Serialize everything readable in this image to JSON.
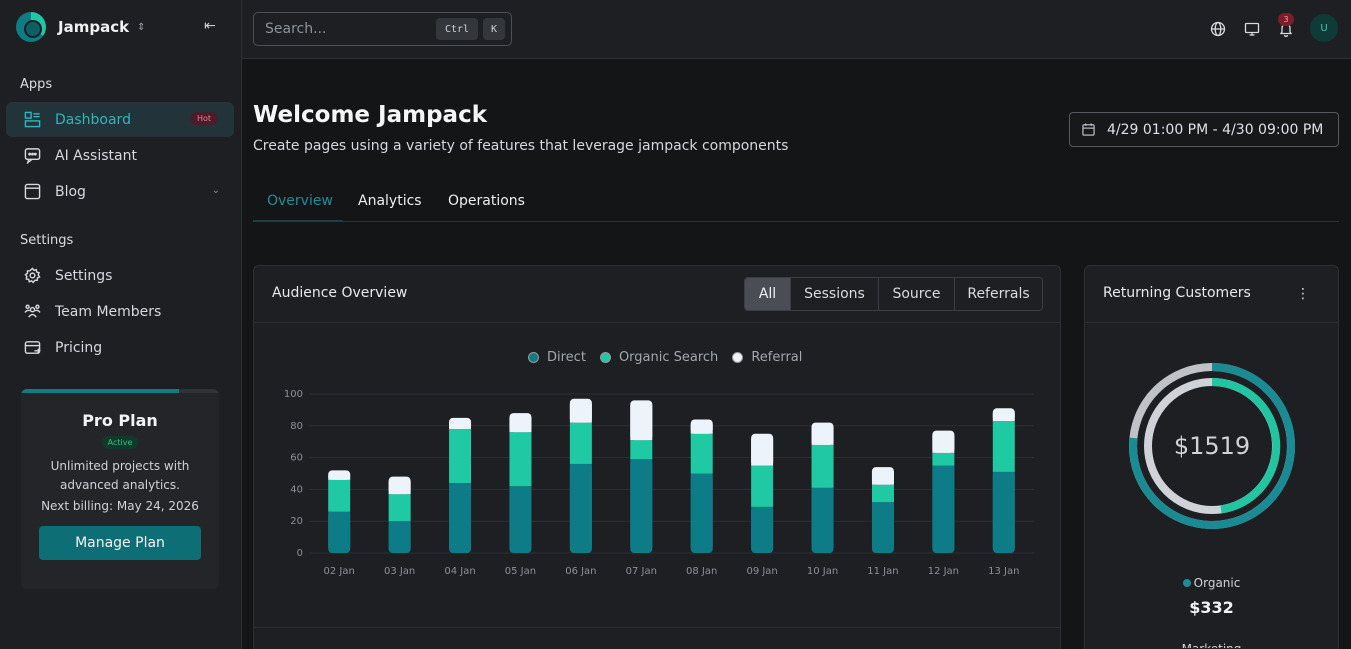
{
  "brand": {
    "name": "Jampack"
  },
  "sidebar": {
    "apps_label": "Apps",
    "settings_label": "Settings",
    "items": [
      {
        "label": "Dashboard",
        "badge": "Hot",
        "icon": "dashboard-icon"
      },
      {
        "label": "AI Assistant",
        "icon": "chat-icon"
      },
      {
        "label": "Blog",
        "icon": "browser-window-icon"
      },
      {
        "label": "Settings",
        "icon": "gear-icon"
      },
      {
        "label": "Team Members",
        "icon": "users-icon"
      },
      {
        "label": "Pricing",
        "icon": "billing-icon"
      }
    ]
  },
  "plan": {
    "title": "Pro Plan",
    "badge": "Active",
    "description": "Unlimited projects with advanced analytics.",
    "billing": "Next billing: May 24, 2026",
    "button": "Manage Plan"
  },
  "topbar": {
    "search_placeholder": "Search...",
    "kbd_ctrl": "Ctrl",
    "kbd_k": "K",
    "notification_count": "3",
    "avatar_initial": "U"
  },
  "page": {
    "title": "Welcome Jampack",
    "subtitle": "Create pages using a variety of features that leverage jampack components",
    "date_range": "4/29 01:00 PM - 4/30 09:00 PM",
    "tabs": [
      "Overview",
      "Analytics",
      "Operations"
    ]
  },
  "audience": {
    "title": "Audience Overview",
    "filters": [
      "All",
      "Sessions",
      "Source",
      "Referrals"
    ],
    "active_filter": "All"
  },
  "chart_data": {
    "type": "bar",
    "stacked": true,
    "categories": [
      "02 Jan",
      "03 Jan",
      "04 Jan",
      "05 Jan",
      "06 Jan",
      "07 Jan",
      "08 Jan",
      "09 Jan",
      "10 Jan",
      "11 Jan",
      "12 Jan",
      "13 Jan"
    ],
    "series": [
      {
        "name": "Direct",
        "color": "#0e7c86",
        "values": [
          26,
          20,
          44,
          42,
          56,
          59,
          50,
          29,
          41,
          32,
          55,
          51
        ]
      },
      {
        "name": "Organic Search",
        "color": "#1fc9a3",
        "values": [
          20,
          17,
          34,
          34,
          26,
          12,
          25,
          26,
          27,
          11,
          8,
          32
        ]
      },
      {
        "name": "Referral",
        "color": "#edf3fa",
        "values": [
          6,
          11,
          7,
          12,
          15,
          25,
          9,
          20,
          14,
          11,
          14,
          8
        ]
      }
    ],
    "yticks": [
      0,
      20,
      40,
      60,
      80,
      100
    ],
    "ylim": [
      0,
      100
    ],
    "legend_position": "top",
    "grid": true
  },
  "returning": {
    "title": "Returning Customers",
    "total": "$1519",
    "legend_label": "Organic",
    "amount": "$332",
    "next_label": "Marketing"
  },
  "colors": {
    "accent": "#1a8f98",
    "teal_dark": "#0e7c86",
    "teal_light": "#1fc9a3",
    "bg": "#141516"
  }
}
